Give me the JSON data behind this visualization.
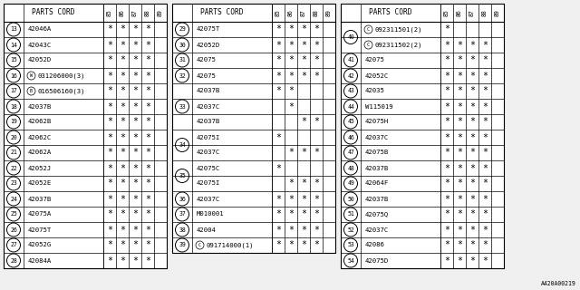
{
  "title": "A420A00219",
  "col_headers": [
    "85",
    "86",
    "87",
    "88",
    "89"
  ],
  "panels": [
    {
      "rows": [
        {
          "num": "13",
          "part": "42046A",
          "marks": [
            1,
            1,
            1,
            1,
            0
          ]
        },
        {
          "num": "14",
          "part": "42043C",
          "marks": [
            1,
            1,
            1,
            1,
            0
          ]
        },
        {
          "num": "15",
          "part": "42052D",
          "marks": [
            1,
            1,
            1,
            1,
            0
          ]
        },
        {
          "num": "16",
          "part": "W031206000(3)",
          "marks": [
            1,
            1,
            1,
            1,
            0
          ],
          "prefix": "W"
        },
        {
          "num": "17",
          "part": "B016506160(3)",
          "marks": [
            1,
            1,
            1,
            1,
            0
          ],
          "prefix": "B"
        },
        {
          "num": "18",
          "part": "42037B",
          "marks": [
            1,
            1,
            1,
            1,
            0
          ]
        },
        {
          "num": "19",
          "part": "42062B",
          "marks": [
            1,
            1,
            1,
            1,
            0
          ]
        },
        {
          "num": "20",
          "part": "42062C",
          "marks": [
            1,
            1,
            1,
            1,
            0
          ]
        },
        {
          "num": "21",
          "part": "42062A",
          "marks": [
            1,
            1,
            1,
            1,
            0
          ]
        },
        {
          "num": "22",
          "part": "42052J",
          "marks": [
            1,
            1,
            1,
            1,
            0
          ]
        },
        {
          "num": "23",
          "part": "42052E",
          "marks": [
            1,
            1,
            1,
            1,
            0
          ]
        },
        {
          "num": "24",
          "part": "42037B",
          "marks": [
            1,
            1,
            1,
            1,
            0
          ]
        },
        {
          "num": "25",
          "part": "42075A",
          "marks": [
            1,
            1,
            1,
            1,
            0
          ]
        },
        {
          "num": "26",
          "part": "42075T",
          "marks": [
            1,
            1,
            1,
            1,
            0
          ]
        },
        {
          "num": "27",
          "part": "42052G",
          "marks": [
            1,
            1,
            1,
            1,
            0
          ]
        },
        {
          "num": "28",
          "part": "42084A",
          "marks": [
            1,
            1,
            1,
            1,
            0
          ]
        }
      ]
    },
    {
      "rows": [
        {
          "num": "29",
          "part": "42075T",
          "marks": [
            1,
            1,
            1,
            1,
            0
          ]
        },
        {
          "num": "30",
          "part": "42052D",
          "marks": [
            1,
            1,
            1,
            1,
            0
          ]
        },
        {
          "num": "31",
          "part": "42075",
          "marks": [
            1,
            1,
            1,
            1,
            0
          ]
        },
        {
          "num": "32",
          "part": "42075",
          "marks": [
            1,
            1,
            1,
            1,
            0
          ]
        },
        {
          "num": "33",
          "part": "42037B",
          "marks": [
            1,
            1,
            0,
            0,
            0
          ],
          "group_start": true
        },
        {
          "num": "33",
          "part": "42037C",
          "marks": [
            0,
            1,
            0,
            0,
            0
          ],
          "group_mid": true
        },
        {
          "num": "33",
          "part": "42037B",
          "marks": [
            0,
            0,
            1,
            1,
            0
          ],
          "group_end": true
        },
        {
          "num": "34",
          "part": "42075I",
          "marks": [
            1,
            0,
            0,
            0,
            0
          ],
          "group_start": true
        },
        {
          "num": "34",
          "part": "42037C",
          "marks": [
            0,
            1,
            1,
            1,
            0
          ],
          "group_end": true
        },
        {
          "num": "35",
          "part": "42075C",
          "marks": [
            1,
            0,
            0,
            0,
            0
          ],
          "group_start": true
        },
        {
          "num": "35",
          "part": "42075I",
          "marks": [
            0,
            1,
            1,
            1,
            0
          ],
          "group_end": true
        },
        {
          "num": "36",
          "part": "42037C",
          "marks": [
            1,
            1,
            1,
            1,
            0
          ]
        },
        {
          "num": "37",
          "part": "M010001",
          "marks": [
            1,
            1,
            1,
            1,
            0
          ]
        },
        {
          "num": "38",
          "part": "42004",
          "marks": [
            1,
            1,
            1,
            1,
            0
          ]
        },
        {
          "num": "39",
          "part": "C091714000(1)",
          "marks": [
            1,
            1,
            1,
            1,
            0
          ],
          "prefix": "C"
        }
      ]
    },
    {
      "rows": [
        {
          "num": "40",
          "part": "C092311501(2)",
          "marks": [
            1,
            0,
            0,
            0,
            0
          ],
          "prefix": "C",
          "group_start": true
        },
        {
          "num": "40",
          "part": "C092311502(2)",
          "marks": [
            1,
            1,
            1,
            1,
            0
          ],
          "prefix": "C",
          "group_end": true
        },
        {
          "num": "41",
          "part": "42075",
          "marks": [
            1,
            1,
            1,
            1,
            0
          ]
        },
        {
          "num": "42",
          "part": "42052C",
          "marks": [
            1,
            1,
            1,
            1,
            0
          ]
        },
        {
          "num": "43",
          "part": "42035",
          "marks": [
            1,
            1,
            1,
            1,
            0
          ]
        },
        {
          "num": "44",
          "part": "W115019",
          "marks": [
            1,
            1,
            1,
            1,
            0
          ]
        },
        {
          "num": "45",
          "part": "42075H",
          "marks": [
            1,
            1,
            1,
            1,
            0
          ]
        },
        {
          "num": "46",
          "part": "42037C",
          "marks": [
            1,
            1,
            1,
            1,
            0
          ]
        },
        {
          "num": "47",
          "part": "42075B",
          "marks": [
            1,
            1,
            1,
            1,
            0
          ]
        },
        {
          "num": "48",
          "part": "42037B",
          "marks": [
            1,
            1,
            1,
            1,
            0
          ]
        },
        {
          "num": "49",
          "part": "42064F",
          "marks": [
            1,
            1,
            1,
            1,
            0
          ]
        },
        {
          "num": "50",
          "part": "42037B",
          "marks": [
            1,
            1,
            1,
            1,
            0
          ]
        },
        {
          "num": "51",
          "part": "42075Q",
          "marks": [
            1,
            1,
            1,
            1,
            0
          ]
        },
        {
          "num": "52",
          "part": "42037C",
          "marks": [
            1,
            1,
            1,
            1,
            0
          ]
        },
        {
          "num": "53",
          "part": "42086",
          "marks": [
            1,
            1,
            1,
            1,
            0
          ]
        },
        {
          "num": "54",
          "part": "42075D",
          "marks": [
            1,
            1,
            1,
            1,
            0
          ]
        }
      ]
    }
  ],
  "bg_color": "#f0f0f0",
  "panel_bg": "#ffffff",
  "line_color": "#000000",
  "text_color": "#000000",
  "font_size": 5.2,
  "header_label": "PARTS CORD",
  "footnote": "A420A00219"
}
